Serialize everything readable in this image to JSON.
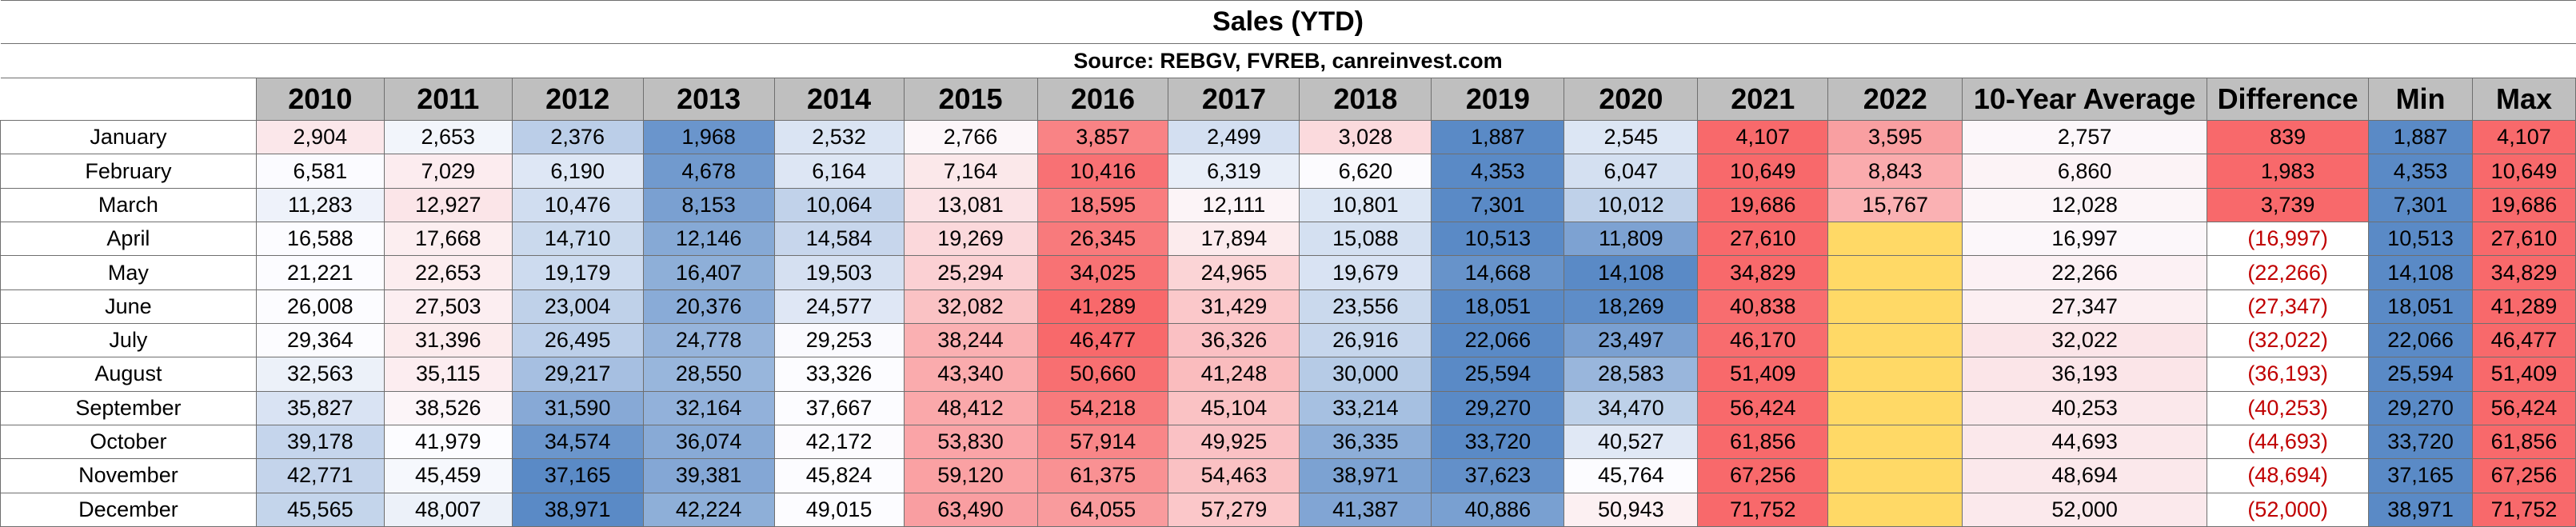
{
  "chart_data": {
    "type": "table",
    "title": "Sales (YTD)",
    "subtitle": "Source: REBGV, FVREB, canreinvest.com",
    "columns": [
      "2010",
      "2011",
      "2012",
      "2013",
      "2014",
      "2015",
      "2016",
      "2017",
      "2018",
      "2019",
      "2020",
      "2021",
      "2022",
      "10-Year Average",
      "Difference",
      "Min",
      "Max"
    ],
    "rows": [
      {
        "month": "January",
        "cells": [
          "2,904",
          "2,653",
          "2,376",
          "1,968",
          "2,532",
          "2,766",
          "3,857",
          "2,499",
          "3,028",
          "1,887",
          "2,545",
          "4,107",
          "3,595",
          "2,757",
          "839",
          "1,887",
          "4,107"
        ]
      },
      {
        "month": "February",
        "cells": [
          "6,581",
          "7,029",
          "6,190",
          "4,678",
          "6,164",
          "7,164",
          "10,416",
          "6,319",
          "6,620",
          "4,353",
          "6,047",
          "10,649",
          "8,843",
          "6,860",
          "1,983",
          "4,353",
          "10,649"
        ]
      },
      {
        "month": "March",
        "cells": [
          "11,283",
          "12,927",
          "10,476",
          "8,153",
          "10,064",
          "13,081",
          "18,595",
          "12,111",
          "10,801",
          "7,301",
          "10,012",
          "19,686",
          "15,767",
          "12,028",
          "3,739",
          "7,301",
          "19,686"
        ]
      },
      {
        "month": "April",
        "cells": [
          "16,588",
          "17,668",
          "14,710",
          "12,146",
          "14,584",
          "19,269",
          "26,345",
          "17,894",
          "15,088",
          "10,513",
          "11,809",
          "27,610",
          "",
          "16,997",
          "(16,997)",
          "10,513",
          "27,610"
        ]
      },
      {
        "month": "May",
        "cells": [
          "21,221",
          "22,653",
          "19,179",
          "16,407",
          "19,503",
          "25,294",
          "34,025",
          "24,965",
          "19,679",
          "14,668",
          "14,108",
          "34,829",
          "",
          "22,266",
          "(22,266)",
          "14,108",
          "34,829"
        ]
      },
      {
        "month": "June",
        "cells": [
          "26,008",
          "27,503",
          "23,004",
          "20,376",
          "24,577",
          "32,082",
          "41,289",
          "31,429",
          "23,556",
          "18,051",
          "18,269",
          "40,838",
          "",
          "27,347",
          "(27,347)",
          "18,051",
          "41,289"
        ]
      },
      {
        "month": "July",
        "cells": [
          "29,364",
          "31,396",
          "26,495",
          "24,778",
          "29,253",
          "38,244",
          "46,477",
          "36,326",
          "26,916",
          "22,066",
          "23,497",
          "46,170",
          "",
          "32,022",
          "(32,022)",
          "22,066",
          "46,477"
        ]
      },
      {
        "month": "August",
        "cells": [
          "32,563",
          "35,115",
          "29,217",
          "28,550",
          "33,326",
          "43,340",
          "50,660",
          "41,248",
          "30,000",
          "25,594",
          "28,583",
          "51,409",
          "",
          "36,193",
          "(36,193)",
          "25,594",
          "51,409"
        ]
      },
      {
        "month": "September",
        "cells": [
          "35,827",
          "38,526",
          "31,590",
          "32,164",
          "37,667",
          "48,412",
          "54,218",
          "45,104",
          "33,214",
          "29,270",
          "34,470",
          "56,424",
          "",
          "40,253",
          "(40,253)",
          "29,270",
          "56,424"
        ]
      },
      {
        "month": "October",
        "cells": [
          "39,178",
          "41,979",
          "34,574",
          "36,074",
          "42,172",
          "53,830",
          "57,914",
          "49,925",
          "36,335",
          "33,720",
          "40,527",
          "61,856",
          "",
          "44,693",
          "(44,693)",
          "33,720",
          "61,856"
        ]
      },
      {
        "month": "November",
        "cells": [
          "42,771",
          "45,459",
          "37,165",
          "39,381",
          "45,824",
          "59,120",
          "61,375",
          "54,463",
          "38,971",
          "37,623",
          "45,764",
          "67,256",
          "",
          "48,694",
          "(48,694)",
          "37,165",
          "67,256"
        ]
      },
      {
        "month": "December",
        "cells": [
          "45,565",
          "48,007",
          "38,971",
          "42,224",
          "49,015",
          "63,490",
          "64,055",
          "57,279",
          "41,387",
          "40,886",
          "50,943",
          "71,752",
          "",
          "52,000",
          "(52,000)",
          "38,971",
          "71,752"
        ]
      }
    ]
  },
  "colors": {
    "header_bg": "#bfbfbf",
    "scale_low": "#5a8ac6",
    "scale_mid": "#fcfcff",
    "scale_high": "#f8696b",
    "empty_2022": "#ffd966",
    "negative_text": "#c00000"
  }
}
